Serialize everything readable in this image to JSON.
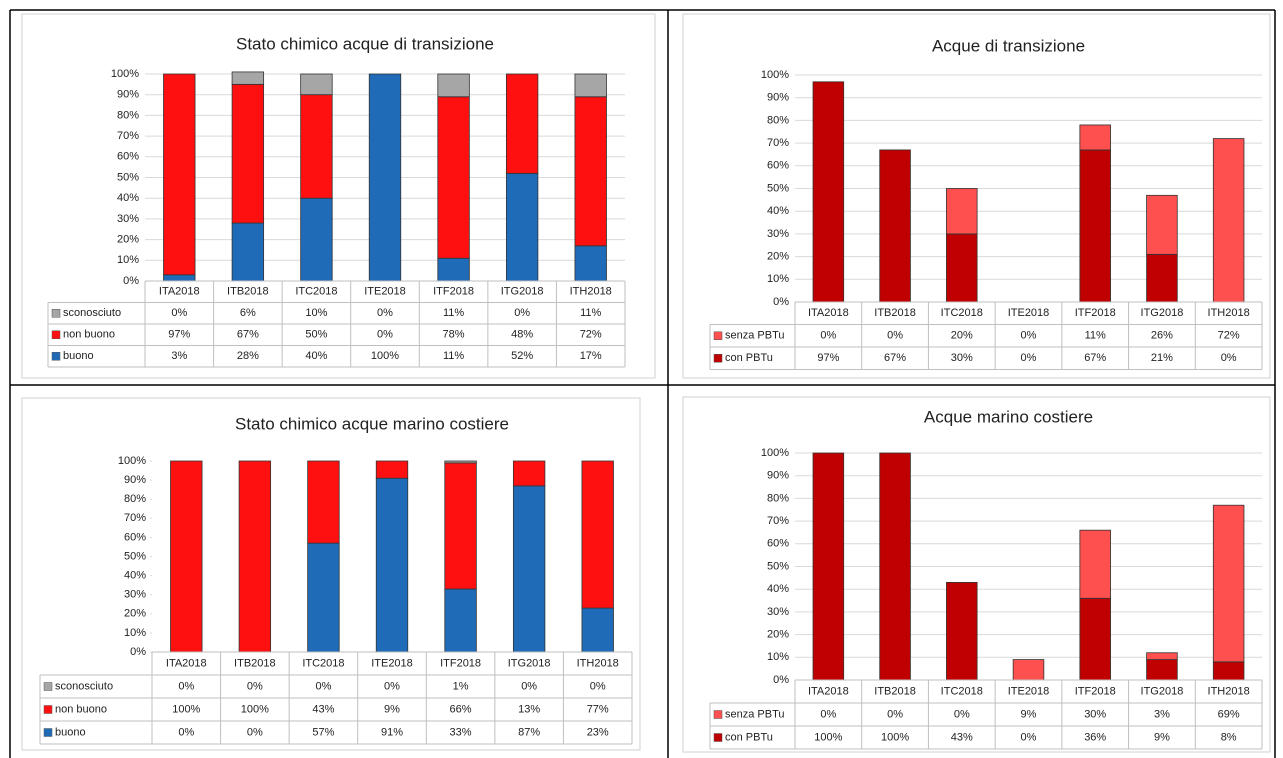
{
  "chart_data": [
    {
      "type": "bar",
      "stacked": true,
      "title": "Stato chimico acque di transizione",
      "categories": [
        "ITA2018",
        "ITB2018",
        "ITC2018",
        "ITE2018",
        "ITF2018",
        "ITG2018",
        "ITH2018"
      ],
      "series": [
        {
          "name": "buono",
          "color": "#1f6bb8",
          "values": [
            3,
            28,
            40,
            100,
            11,
            52,
            17
          ],
          "value_labels": [
            "3%",
            "28%",
            "40%",
            "100%",
            "11%",
            "52%",
            "17%"
          ]
        },
        {
          "name": "non buono",
          "color": "#ff1010",
          "values": [
            97,
            67,
            50,
            0,
            78,
            48,
            72
          ],
          "value_labels": [
            "97%",
            "67%",
            "50%",
            "0%",
            "78%",
            "48%",
            "72%"
          ]
        },
        {
          "name": "sconosciuto",
          "color": "#a6a6a6",
          "values": [
            0,
            6,
            10,
            0,
            11,
            0,
            11
          ],
          "value_labels": [
            "0%",
            "6%",
            "10%",
            "0%",
            "11%",
            "0%",
            "11%"
          ]
        }
      ],
      "ylim": [
        0,
        100
      ],
      "yticks": [
        {
          "value": 0,
          "label": "0%"
        },
        {
          "value": 10,
          "label": "10%"
        },
        {
          "value": 20,
          "label": "20%"
        },
        {
          "value": 30,
          "label": "30%"
        },
        {
          "value": 40,
          "label": "40%"
        },
        {
          "value": 50,
          "label": "50%"
        },
        {
          "value": 60,
          "label": "60%"
        },
        {
          "value": 70,
          "label": "70%"
        },
        {
          "value": 80,
          "label": "80%"
        },
        {
          "value": 90,
          "label": "90%"
        },
        {
          "value": 100,
          "label": "100%"
        }
      ],
      "grid": true
    },
    {
      "type": "bar",
      "stacked": true,
      "title": "Acque di transizione",
      "categories": [
        "ITA2018",
        "ITB2018",
        "ITC2018",
        "ITE2018",
        "ITF2018",
        "ITG2018",
        "ITH2018"
      ],
      "series": [
        {
          "name": "con PBTu",
          "color": "#c00000",
          "values": [
            97,
            67,
            30,
            0,
            67,
            21,
            0
          ],
          "value_labels": [
            "97%",
            "67%",
            "30%",
            "0%",
            "67%",
            "21%",
            "0%"
          ]
        },
        {
          "name": "senza PBTu",
          "color": "#ff5050",
          "values": [
            0,
            0,
            20,
            0,
            11,
            26,
            72
          ],
          "value_labels": [
            "0%",
            "0%",
            "20%",
            "0%",
            "11%",
            "26%",
            "72%"
          ]
        }
      ],
      "ylim": [
        0,
        100
      ],
      "yticks": [
        {
          "value": 0,
          "label": "0%"
        },
        {
          "value": 10,
          "label": "10%"
        },
        {
          "value": 20,
          "label": "20%"
        },
        {
          "value": 30,
          "label": "30%"
        },
        {
          "value": 40,
          "label": "40%"
        },
        {
          "value": 50,
          "label": "50%"
        },
        {
          "value": 60,
          "label": "60%"
        },
        {
          "value": 70,
          "label": "70%"
        },
        {
          "value": 80,
          "label": "80%"
        },
        {
          "value": 90,
          "label": "90%"
        },
        {
          "value": 100,
          "label": "100%"
        }
      ],
      "grid": true
    },
    {
      "type": "bar",
      "stacked": true,
      "title": "Stato chimico acque marino costiere",
      "categories": [
        "ITA2018",
        "ITB2018",
        "ITC2018",
        "ITE2018",
        "ITF2018",
        "ITG2018",
        "ITH2018"
      ],
      "series": [
        {
          "name": "buono",
          "color": "#1f6bb8",
          "values": [
            0,
            0,
            57,
            91,
            33,
            87,
            23
          ],
          "value_labels": [
            "0%",
            "0%",
            "57%",
            "91%",
            "33%",
            "87%",
            "23%"
          ]
        },
        {
          "name": "non buono",
          "color": "#ff1010",
          "values": [
            100,
            100,
            43,
            9,
            66,
            13,
            77
          ],
          "value_labels": [
            "100%",
            "100%",
            "43%",
            "9%",
            "66%",
            "13%",
            "77%"
          ]
        },
        {
          "name": "sconosciuto",
          "color": "#a6a6a6",
          "values": [
            0,
            0,
            0,
            0,
            1,
            0,
            0
          ],
          "value_labels": [
            "0%",
            "0%",
            "0%",
            "0%",
            "1%",
            "0%",
            "0%"
          ]
        }
      ],
      "ylim": [
        0,
        100
      ],
      "yticks": [
        {
          "value": 0,
          "label": "0%"
        },
        {
          "value": 10,
          "label": "10%"
        },
        {
          "value": 20,
          "label": "20%"
        },
        {
          "value": 30,
          "label": "30%"
        },
        {
          "value": 40,
          "label": "40%"
        },
        {
          "value": 50,
          "label": "50%"
        },
        {
          "value": 60,
          "label": "60%"
        },
        {
          "value": 70,
          "label": "70%"
        },
        {
          "value": 80,
          "label": "80%"
        },
        {
          "value": 90,
          "label": "90%"
        },
        {
          "value": 100,
          "label": "100%"
        }
      ],
      "grid": false
    },
    {
      "type": "bar",
      "stacked": true,
      "title": "Acque marino costiere",
      "categories": [
        "ITA2018",
        "ITB2018",
        "ITC2018",
        "ITE2018",
        "ITF2018",
        "ITG2018",
        "ITH2018"
      ],
      "series": [
        {
          "name": "con PBTu",
          "color": "#c00000",
          "values": [
            100,
            100,
            43,
            0,
            36,
            9,
            8
          ],
          "value_labels": [
            "100%",
            "100%",
            "43%",
            "0%",
            "36%",
            "9%",
            "8%"
          ]
        },
        {
          "name": "senza PBTu",
          "color": "#ff5050",
          "values": [
            0,
            0,
            0,
            9,
            30,
            3,
            69
          ],
          "value_labels": [
            "0%",
            "0%",
            "0%",
            "9%",
            "30%",
            "3%",
            "69%"
          ]
        }
      ],
      "ylim": [
        0,
        100
      ],
      "yticks": [
        {
          "value": 0,
          "label": "0%"
        },
        {
          "value": 10,
          "label": "10%"
        },
        {
          "value": 20,
          "label": "20%"
        },
        {
          "value": 30,
          "label": "30%"
        },
        {
          "value": 40,
          "label": "40%"
        },
        {
          "value": 50,
          "label": "50%"
        },
        {
          "value": 60,
          "label": "60%"
        },
        {
          "value": 70,
          "label": "70%"
        },
        {
          "value": 80,
          "label": "80%"
        },
        {
          "value": 90,
          "label": "90%"
        },
        {
          "value": 100,
          "label": "100%"
        }
      ],
      "grid": true
    }
  ]
}
